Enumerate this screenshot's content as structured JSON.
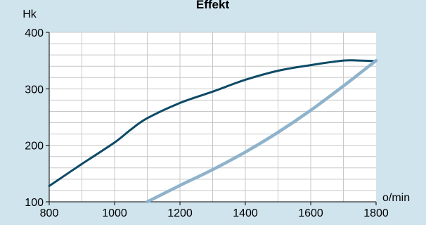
{
  "chart_data": {
    "type": "line",
    "title": "Effekt",
    "xlabel": "o/min",
    "ylabel": "Hk",
    "xlim": [
      800,
      1800
    ],
    "ylim": [
      100,
      400
    ],
    "x_ticks": [
      800,
      1000,
      1200,
      1400,
      1600,
      1800
    ],
    "y_ticks": [
      100,
      200,
      300,
      400
    ],
    "grid": true,
    "colors": {
      "background": "#d0e4ee",
      "plot_area": "#ffffff",
      "grid": "#c8c8c8"
    },
    "series": [
      {
        "color": "#0d4a66",
        "x": [
          800,
          900,
          1000,
          1050,
          1100,
          1200,
          1300,
          1400,
          1500,
          1600,
          1700,
          1750,
          1800
        ],
        "y": [
          128,
          167,
          205,
          228,
          248,
          275,
          295,
          316,
          332,
          342,
          350,
          350,
          349
        ]
      },
      {
        "color": "#8fb3cb",
        "x": [
          1100,
          1200,
          1300,
          1400,
          1500,
          1600,
          1700,
          1800
        ],
        "y": [
          100,
          129,
          157,
          188,
          223,
          262,
          305,
          350
        ]
      }
    ]
  }
}
